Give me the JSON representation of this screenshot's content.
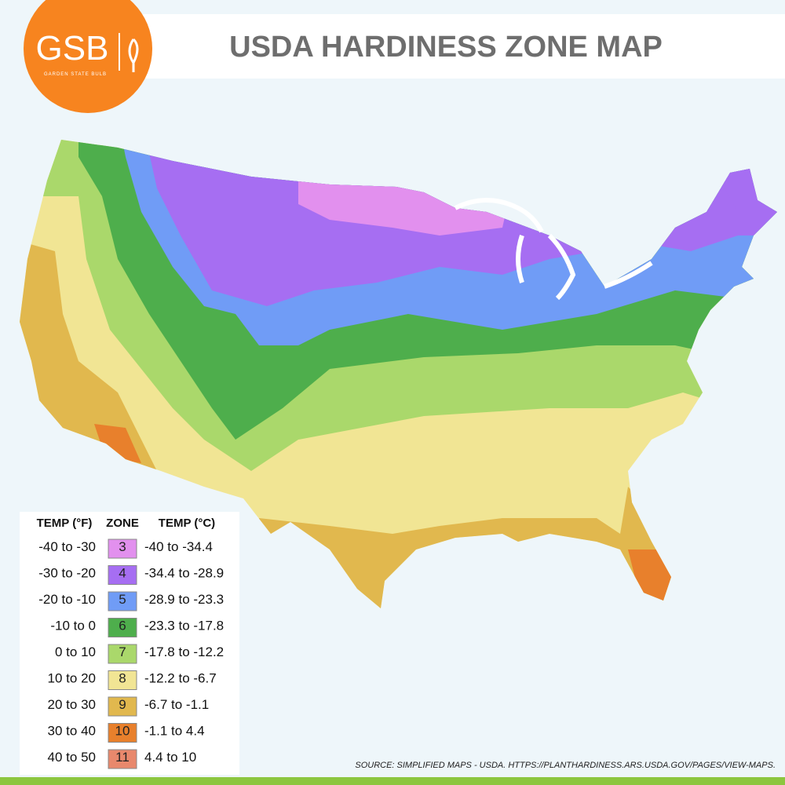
{
  "logo": {
    "text": "GSB",
    "tagline": "GARDEN STATE BULB"
  },
  "title": "USDA HARDINESS ZONE MAP",
  "legend": {
    "headers": [
      "TEMP (°F)",
      "ZONE",
      "TEMP (°C)"
    ],
    "rows": [
      {
        "temp_f": "-40 to -30",
        "zone": "3",
        "temp_c": "-40 to -34.4",
        "color": "#e290ee"
      },
      {
        "temp_f": "-30 to -20",
        "zone": "4",
        "temp_c": "-34.4 to -28.9",
        "color": "#a66ef2"
      },
      {
        "temp_f": "-20 to -10",
        "zone": "5",
        "temp_c": "-28.9 to -23.3",
        "color": "#709cf6"
      },
      {
        "temp_f": "-10 to 0",
        "zone": "6",
        "temp_c": "-23.3 to -17.8",
        "color": "#4eae4c"
      },
      {
        "temp_f": "0 to 10",
        "zone": "7",
        "temp_c": "-17.8 to -12.2",
        "color": "#aad86b"
      },
      {
        "temp_f": "10 to 20",
        "zone": "8",
        "temp_c": "-12.2 to -6.7",
        "color": "#f1e594"
      },
      {
        "temp_f": "20 to 30",
        "zone": "9",
        "temp_c": "-6.7 to -1.1",
        "color": "#e1b84e"
      },
      {
        "temp_f": "30 to 40",
        "zone": "10",
        "temp_c": "-1.1 to 4.4",
        "color": "#e8802c"
      },
      {
        "temp_f": "40 to 50",
        "zone": "11",
        "temp_c": "4.4 to 10",
        "color": "#e8886c"
      }
    ]
  },
  "source": "SOURCE: SIMPLIFIED MAPS - USDA. HTTPS://PLANTHARDINESS.ARS.USDA.GOV/PAGES/VIEW-MAPS."
}
